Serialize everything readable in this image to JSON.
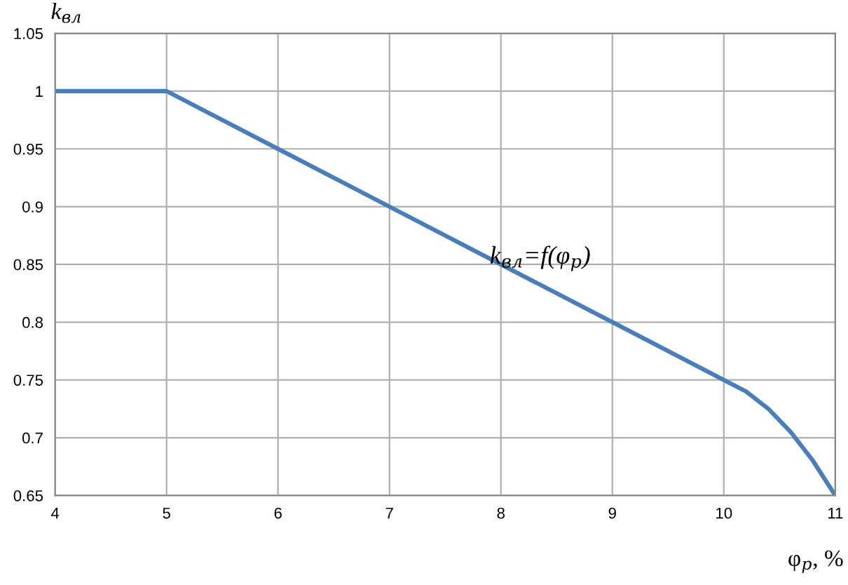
{
  "chart_data": {
    "type": "line",
    "xlabel": "φ$_{р}$, %",
    "ylabel": "k$_{вл}$",
    "x": [
      4,
      5,
      6,
      7,
      8,
      9,
      10,
      10.2,
      10.4,
      10.6,
      10.8,
      11
    ],
    "series": [
      {
        "color": "#4a7ebb",
        "values": [
          1,
          1,
          0.95,
          0.9,
          0.85,
          0.8,
          0.75,
          0.74,
          0.725,
          0.705,
          0.68,
          0.65
        ]
      }
    ],
    "xlim": [
      4,
      11
    ],
    "xticks": [
      4,
      5,
      6,
      7,
      8,
      9,
      10,
      11
    ],
    "ylim": [
      0.65,
      1.05
    ],
    "yticks": [
      0.65,
      0.7,
      0.75,
      0.8,
      0.85,
      0.9,
      0.95,
      1,
      1.05
    ],
    "grid": true,
    "marker": "none",
    "line_style": "solid",
    "annotations": [
      {
        "text": "k$_{вл}$=f(φ$_{р}$)",
        "x": 7.9,
        "y": 0.855
      }
    ]
  }
}
